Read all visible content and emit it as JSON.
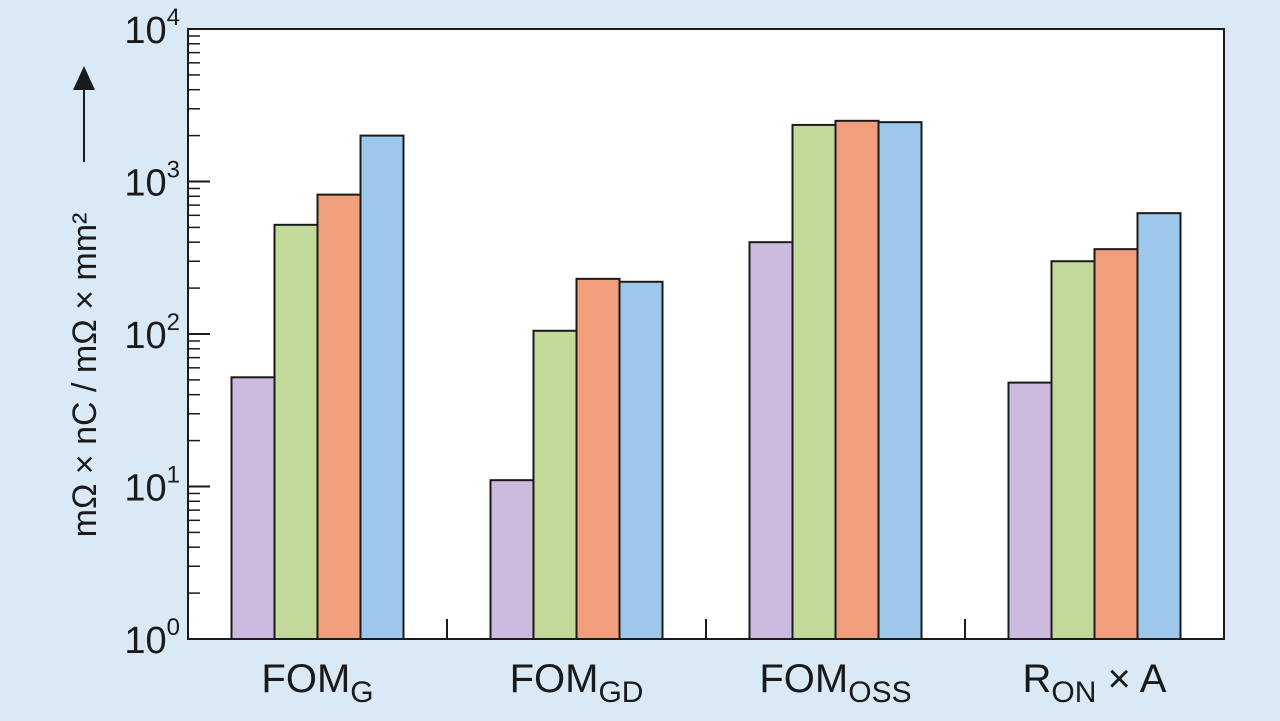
{
  "chart_data": {
    "type": "bar",
    "title": "",
    "ylabel": "mΩ × nC / mΩ × mm²",
    "xlabel": "",
    "yscale": "log",
    "ylim": [
      1,
      10000
    ],
    "yticks": [
      {
        "value": 1,
        "base": "10",
        "exp": "0"
      },
      {
        "value": 10,
        "base": "10",
        "exp": "1"
      },
      {
        "value": 100,
        "base": "10",
        "exp": "2"
      },
      {
        "value": 1000,
        "base": "10",
        "exp": "3"
      },
      {
        "value": 10000,
        "base": "10",
        "exp": "4"
      }
    ],
    "categories": [
      {
        "main": "FOM",
        "sub": "G",
        "suffix": ""
      },
      {
        "main": "FOM",
        "sub": "GD",
        "suffix": ""
      },
      {
        "main": "FOM",
        "sub": "OSS",
        "suffix": ""
      },
      {
        "main": "R",
        "sub": "ON",
        "suffix": " × A"
      }
    ],
    "series": [
      {
        "color": "#cdbbdf",
        "values": [
          52,
          11,
          400,
          48
        ]
      },
      {
        "color": "#c3d99a",
        "values": [
          520,
          105,
          2350,
          300
        ]
      },
      {
        "color": "#f19e7c",
        "values": [
          820,
          230,
          2500,
          360
        ]
      },
      {
        "color": "#9dc8ec",
        "values": [
          2000,
          220,
          2450,
          620
        ]
      }
    ],
    "grid": false,
    "legend": "none"
  }
}
